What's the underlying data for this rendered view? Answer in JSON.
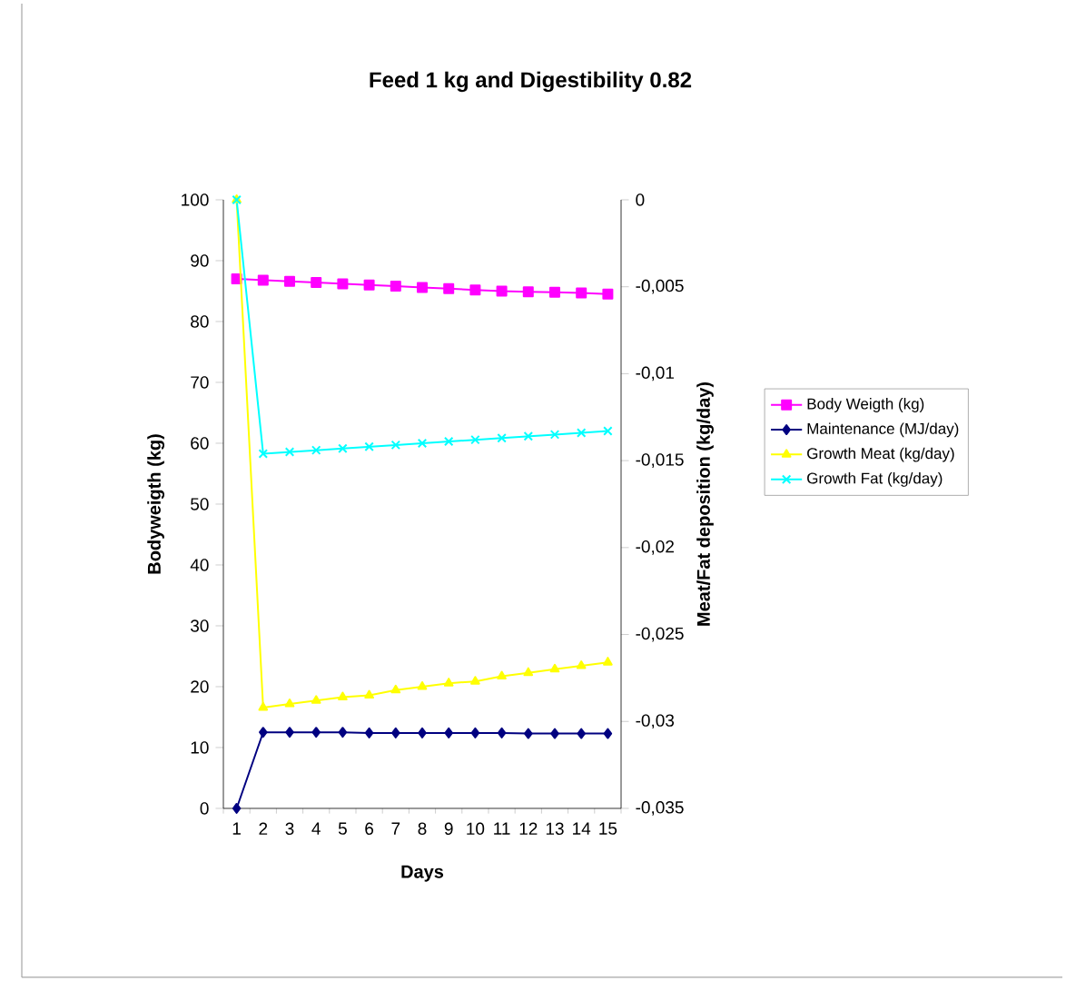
{
  "chart_data": {
    "type": "line",
    "title": "Feed 1 kg and Digestibility 0.82",
    "xlabel": "Days",
    "ylabel": "Bodyweigth (kg)",
    "y2label": "Meat/Fat deposition  (kg/day)",
    "categories": [
      "1",
      "2",
      "3",
      "4",
      "5",
      "6",
      "7",
      "8",
      "9",
      "10",
      "11",
      "12",
      "13",
      "14",
      "15"
    ],
    "ylim": [
      0,
      100
    ],
    "yticks": [
      0,
      10,
      20,
      30,
      40,
      50,
      60,
      70,
      80,
      90,
      100
    ],
    "y2lim": [
      -0.035,
      0
    ],
    "y2ticks": [
      {
        "value": -0.035,
        "label": "-0,035"
      },
      {
        "value": -0.03,
        "label": "-0,03"
      },
      {
        "value": -0.025,
        "label": "-0,025"
      },
      {
        "value": -0.02,
        "label": "-0,02"
      },
      {
        "value": -0.015,
        "label": "-0,015"
      },
      {
        "value": -0.01,
        "label": "-0,01"
      },
      {
        "value": -0.005,
        "label": "-0,005"
      },
      0
    ],
    "legend": "right",
    "grid": false,
    "series": [
      {
        "name": "Body Weigth (kg)",
        "color": "#ff00ff",
        "marker": "square",
        "values": [
          87.0,
          86.8,
          86.6,
          86.4,
          86.2,
          86.0,
          85.8,
          85.6,
          85.4,
          85.2,
          85.0,
          84.9,
          84.8,
          84.7,
          84.5
        ]
      },
      {
        "name": "Maintenance (MJ/day)",
        "color": "#000080",
        "marker": "diamond",
        "values": [
          0,
          12.5,
          12.5,
          12.5,
          12.5,
          12.4,
          12.4,
          12.4,
          12.4,
          12.4,
          12.4,
          12.3,
          12.3,
          12.3,
          12.3
        ]
      },
      {
        "name": "Growth Meat (kg/day)",
        "color": "#ffff00",
        "marker": "triangle",
        "axis": "y2",
        "values": [
          0,
          -0.0292,
          -0.029,
          -0.0288,
          -0.0286,
          -0.0285,
          -0.0282,
          -0.028,
          -0.0278,
          -0.0277,
          -0.0274,
          -0.0272,
          -0.027,
          -0.0268,
          -0.0266
        ]
      },
      {
        "name": "Growth Fat (kg/day)",
        "color": "#00ffff",
        "marker": "cross",
        "axis": "y2",
        "values": [
          0,
          -0.0146,
          -0.0145,
          -0.0144,
          -0.0143,
          -0.0142,
          -0.0141,
          -0.014,
          -0.0139,
          -0.0138,
          -0.0137,
          -0.0136,
          -0.0135,
          -0.0134,
          -0.0133
        ]
      }
    ]
  }
}
